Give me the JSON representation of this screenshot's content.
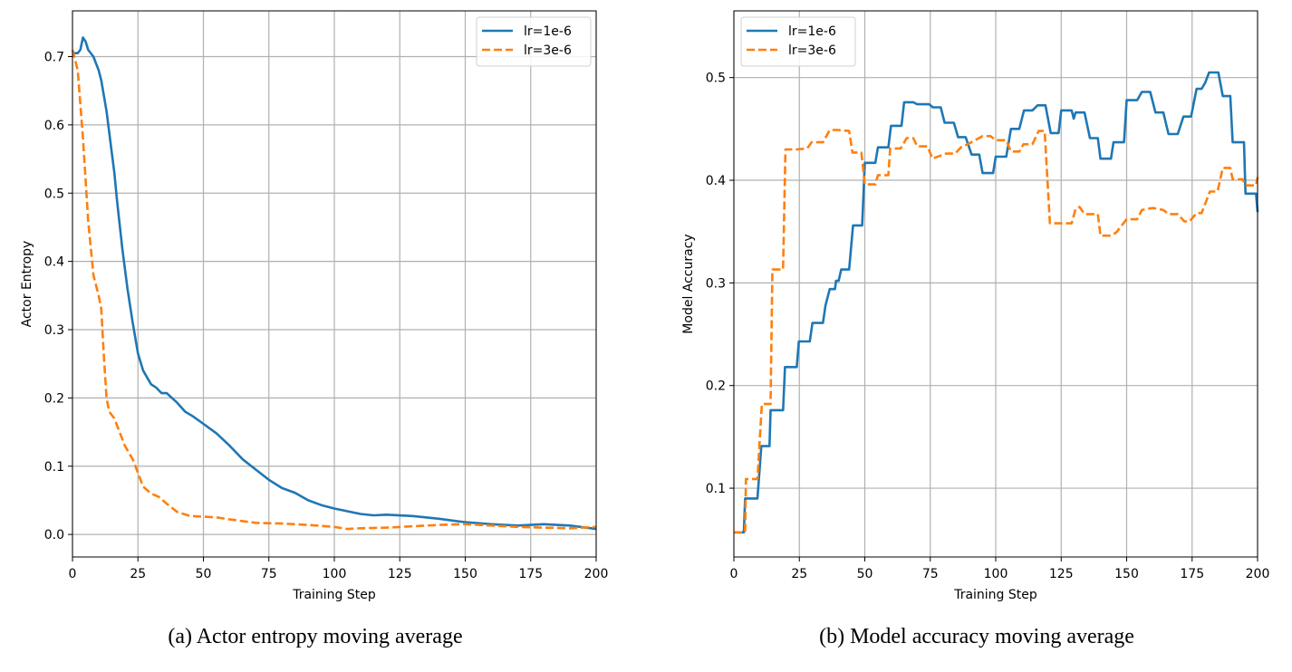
{
  "chart_data": [
    {
      "type": "line",
      "caption": "(a) Actor entropy moving average",
      "xlabel": "Training Step",
      "ylabel": "Actor Entropy",
      "xlim": [
        0,
        200
      ],
      "ylim": [
        -0.033,
        0.767
      ],
      "xticks": [
        0,
        25,
        50,
        75,
        100,
        125,
        150,
        175,
        200
      ],
      "yticks": [
        0.0,
        0.1,
        0.2,
        0.3,
        0.4,
        0.5,
        0.6,
        0.7
      ],
      "ytick_labels": [
        "0.0",
        "0.1",
        "0.2",
        "0.3",
        "0.4",
        "0.5",
        "0.6",
        "0.7"
      ],
      "grid": true,
      "legend": "top-right",
      "series": [
        {
          "name": "lr=1e-6",
          "color": "#1f77b4",
          "style": "solid",
          "points": [
            [
              0,
              0.705
            ],
            [
              2,
              0.705
            ],
            [
              3,
              0.71
            ],
            [
              4,
              0.728
            ],
            [
              5,
              0.722
            ],
            [
              6,
              0.71
            ],
            [
              8,
              0.7
            ],
            [
              10,
              0.68
            ],
            [
              11,
              0.665
            ],
            [
              13,
              0.62
            ],
            [
              15,
              0.56
            ],
            [
              16,
              0.53
            ],
            [
              17,
              0.49
            ],
            [
              19,
              0.42
            ],
            [
              21,
              0.36
            ],
            [
              23,
              0.31
            ],
            [
              25,
              0.265
            ],
            [
              27,
              0.24
            ],
            [
              30,
              0.22
            ],
            [
              32,
              0.215
            ],
            [
              34,
              0.207
            ],
            [
              36,
              0.207
            ],
            [
              38,
              0.2
            ],
            [
              40,
              0.193
            ],
            [
              43,
              0.18
            ],
            [
              46,
              0.173
            ],
            [
              50,
              0.162
            ],
            [
              55,
              0.148
            ],
            [
              60,
              0.13
            ],
            [
              65,
              0.11
            ],
            [
              70,
              0.095
            ],
            [
              75,
              0.08
            ],
            [
              80,
              0.068
            ],
            [
              85,
              0.061
            ],
            [
              90,
              0.05
            ],
            [
              95,
              0.043
            ],
            [
              100,
              0.038
            ],
            [
              105,
              0.034
            ],
            [
              110,
              0.03
            ],
            [
              115,
              0.028
            ],
            [
              120,
              0.029
            ],
            [
              130,
              0.027
            ],
            [
              140,
              0.023
            ],
            [
              150,
              0.018
            ],
            [
              160,
              0.015
            ],
            [
              170,
              0.013
            ],
            [
              180,
              0.015
            ],
            [
              190,
              0.013
            ],
            [
              200,
              0.008
            ]
          ]
        },
        {
          "name": "lr=3e-6",
          "color": "#ff7f0e",
          "style": "dashed",
          "points": [
            [
              0,
              0.71
            ],
            [
              2,
              0.68
            ],
            [
              4,
              0.58
            ],
            [
              6,
              0.46
            ],
            [
              8,
              0.38
            ],
            [
              10,
              0.35
            ],
            [
              11,
              0.33
            ],
            [
              12,
              0.26
            ],
            [
              13,
              0.2
            ],
            [
              14,
              0.18
            ],
            [
              16,
              0.17
            ],
            [
              18,
              0.15
            ],
            [
              20,
              0.13
            ],
            [
              23,
              0.11
            ],
            [
              25,
              0.09
            ],
            [
              27,
              0.07
            ],
            [
              30,
              0.06
            ],
            [
              33,
              0.055
            ],
            [
              36,
              0.045
            ],
            [
              40,
              0.033
            ],
            [
              45,
              0.027
            ],
            [
              50,
              0.026
            ],
            [
              55,
              0.025
            ],
            [
              60,
              0.022
            ],
            [
              70,
              0.017
            ],
            [
              80,
              0.016
            ],
            [
              90,
              0.014
            ],
            [
              100,
              0.011
            ],
            [
              105,
              0.008
            ],
            [
              110,
              0.009
            ],
            [
              120,
              0.01
            ],
            [
              130,
              0.012
            ],
            [
              140,
              0.014
            ],
            [
              150,
              0.015
            ],
            [
              160,
              0.013
            ],
            [
              170,
              0.011
            ],
            [
              180,
              0.01
            ],
            [
              190,
              0.009
            ],
            [
              200,
              0.011
            ]
          ]
        }
      ]
    },
    {
      "type": "line",
      "caption": "(b) Model accuracy moving average",
      "xlabel": "Training Step",
      "ylabel": "Model Accuracy",
      "xlim": [
        0,
        200
      ],
      "ylim": [
        0.033,
        0.565
      ],
      "xticks": [
        0,
        25,
        50,
        75,
        100,
        125,
        150,
        175,
        200
      ],
      "yticks": [
        0.1,
        0.2,
        0.3,
        0.4,
        0.5
      ],
      "ytick_labels": [
        "0.1",
        "0.2",
        "0.3",
        "0.4",
        "0.5"
      ],
      "grid": true,
      "legend": "top-left",
      "series": [
        {
          "name": "lr=1e-6",
          "color": "#1f77b4",
          "style": "solid",
          "points": [
            [
              0,
              0.057
            ],
            [
              3.8,
              0.057
            ],
            [
              4.3,
              0.09
            ],
            [
              9,
              0.09
            ],
            [
              10.5,
              0.141
            ],
            [
              13.6,
              0.141
            ],
            [
              14,
              0.176
            ],
            [
              18.8,
              0.176
            ],
            [
              19.5,
              0.218
            ],
            [
              24,
              0.218
            ],
            [
              24.8,
              0.243
            ],
            [
              29,
              0.243
            ],
            [
              30,
              0.261
            ],
            [
              34,
              0.261
            ],
            [
              35,
              0.278
            ],
            [
              36.6,
              0.294
            ],
            [
              38.6,
              0.294
            ],
            [
              39,
              0.302
            ],
            [
              40,
              0.302
            ],
            [
              41,
              0.313
            ],
            [
              44,
              0.313
            ],
            [
              45.5,
              0.356
            ],
            [
              49,
              0.356
            ],
            [
              50,
              0.417
            ],
            [
              54,
              0.417
            ],
            [
              55,
              0.432
            ],
            [
              59,
              0.432
            ],
            [
              60,
              0.453
            ],
            [
              64,
              0.453
            ],
            [
              65,
              0.476
            ],
            [
              68.5,
              0.476
            ],
            [
              70,
              0.474
            ],
            [
              74.6,
              0.474
            ],
            [
              76,
              0.471
            ],
            [
              79,
              0.471
            ],
            [
              80.5,
              0.456
            ],
            [
              84,
              0.456
            ],
            [
              85.6,
              0.442
            ],
            [
              88.5,
              0.442
            ],
            [
              90.8,
              0.425
            ],
            [
              93.7,
              0.425
            ],
            [
              95,
              0.407
            ],
            [
              99,
              0.407
            ],
            [
              100,
              0.423
            ],
            [
              104,
              0.423
            ],
            [
              105.8,
              0.45
            ],
            [
              109,
              0.45
            ],
            [
              110.8,
              0.468
            ],
            [
              114,
              0.468
            ],
            [
              116,
              0.473
            ],
            [
              119,
              0.473
            ],
            [
              121,
              0.446
            ],
            [
              124,
              0.446
            ],
            [
              125,
              0.468
            ],
            [
              129,
              0.468
            ],
            [
              129.8,
              0.46
            ],
            [
              130.5,
              0.466
            ],
            [
              133.9,
              0.466
            ],
            [
              136,
              0.441
            ],
            [
              139,
              0.441
            ],
            [
              140,
              0.421
            ],
            [
              144,
              0.421
            ],
            [
              145,
              0.437
            ],
            [
              149,
              0.437
            ],
            [
              150,
              0.478
            ],
            [
              154,
              0.478
            ],
            [
              155.8,
              0.486
            ],
            [
              159,
              0.486
            ],
            [
              161,
              0.466
            ],
            [
              164,
              0.466
            ],
            [
              166,
              0.445
            ],
            [
              169.5,
              0.445
            ],
            [
              171.7,
              0.462
            ],
            [
              174.6,
              0.462
            ],
            [
              176.7,
              0.489
            ],
            [
              178.6,
              0.489
            ],
            [
              180,
              0.495
            ],
            [
              181.5,
              0.505
            ],
            [
              185,
              0.505
            ],
            [
              186.7,
              0.482
            ],
            [
              189.6,
              0.482
            ],
            [
              190.5,
              0.437
            ],
            [
              194.8,
              0.437
            ],
            [
              195.4,
              0.387
            ],
            [
              199.4,
              0.387
            ],
            [
              200,
              0.369
            ]
          ]
        },
        {
          "name": "lr=3e-6",
          "color": "#ff7f0e",
          "style": "dashed",
          "points": [
            [
              0,
              0.057
            ],
            [
              4.3,
              0.057
            ],
            [
              4.6,
              0.109
            ],
            [
              9,
              0.109
            ],
            [
              10.7,
              0.182
            ],
            [
              14,
              0.182
            ],
            [
              14.7,
              0.313
            ],
            [
              18.8,
              0.313
            ],
            [
              19.7,
              0.43
            ],
            [
              24,
              0.43
            ],
            [
              28,
              0.431
            ],
            [
              29.7,
              0.437
            ],
            [
              34,
              0.437
            ],
            [
              36.6,
              0.449
            ],
            [
              39.5,
              0.449
            ],
            [
              44,
              0.448
            ],
            [
              45.3,
              0.427
            ],
            [
              48.7,
              0.427
            ],
            [
              50,
              0.396
            ],
            [
              54,
              0.396
            ],
            [
              55,
              0.405
            ],
            [
              59,
              0.405
            ],
            [
              59.7,
              0.431
            ],
            [
              63.7,
              0.431
            ],
            [
              66,
              0.441
            ],
            [
              68.5,
              0.441
            ],
            [
              70,
              0.433
            ],
            [
              74,
              0.433
            ],
            [
              75.8,
              0.421
            ],
            [
              81,
              0.426
            ],
            [
              84.5,
              0.426
            ],
            [
              86.7,
              0.432
            ],
            [
              90,
              0.436
            ],
            [
              95,
              0.443
            ],
            [
              98,
              0.443
            ],
            [
              100,
              0.439
            ],
            [
              104,
              0.439
            ],
            [
              105.8,
              0.428
            ],
            [
              109,
              0.428
            ],
            [
              110.6,
              0.435
            ],
            [
              114,
              0.435
            ],
            [
              116.4,
              0.448
            ],
            [
              118.7,
              0.448
            ],
            [
              120.7,
              0.358
            ],
            [
              129,
              0.358
            ],
            [
              130.5,
              0.372
            ],
            [
              132,
              0.374
            ],
            [
              133.9,
              0.367
            ],
            [
              136,
              0.367
            ],
            [
              139,
              0.367
            ],
            [
              140,
              0.346
            ],
            [
              144,
              0.346
            ],
            [
              146,
              0.349
            ],
            [
              150,
              0.362
            ],
            [
              154,
              0.362
            ],
            [
              155.8,
              0.371
            ],
            [
              160,
              0.373
            ],
            [
              164,
              0.371
            ],
            [
              166,
              0.367
            ],
            [
              169.5,
              0.367
            ],
            [
              172,
              0.36
            ],
            [
              174,
              0.36
            ],
            [
              176.7,
              0.368
            ],
            [
              178.6,
              0.368
            ],
            [
              181.8,
              0.389
            ],
            [
              184.7,
              0.389
            ],
            [
              186.7,
              0.412
            ],
            [
              189.6,
              0.412
            ],
            [
              190.5,
              0.401
            ],
            [
              194.3,
              0.401
            ],
            [
              195.4,
              0.395
            ],
            [
              199.4,
              0.395
            ],
            [
              200,
              0.403
            ]
          ]
        }
      ]
    }
  ]
}
